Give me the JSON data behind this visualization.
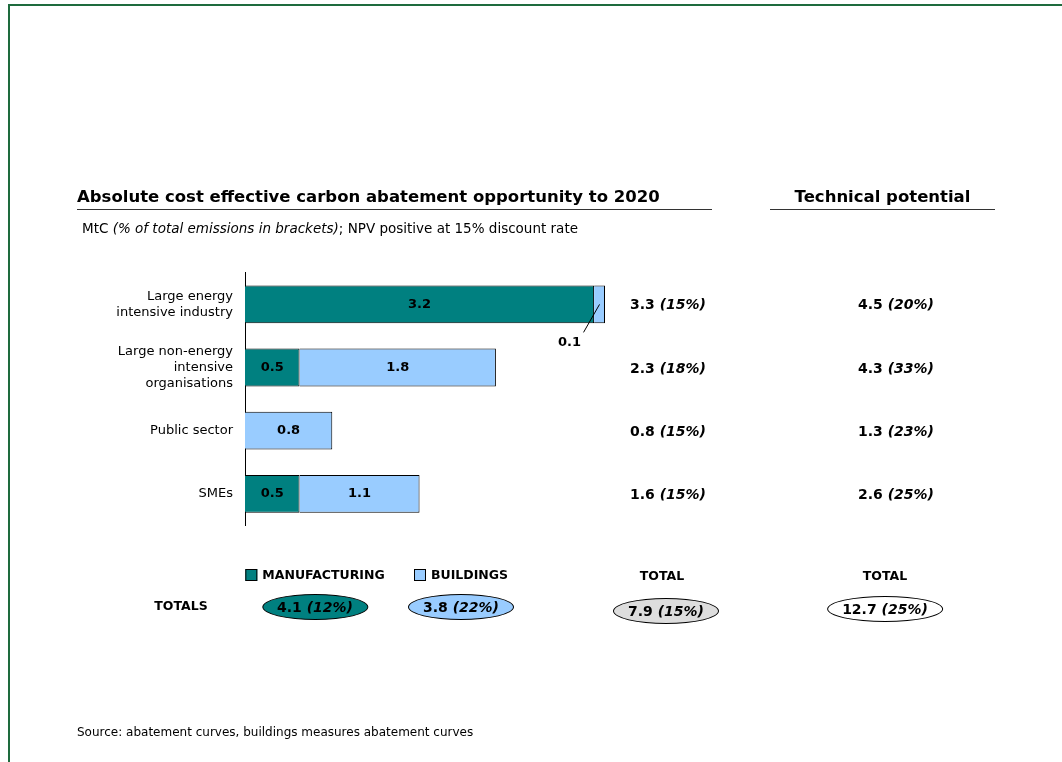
{
  "chart_data": {
    "type": "bar",
    "orientation": "horizontal",
    "stacked": true,
    "title": "Absolute cost effective carbon abatement opportunity to 2020",
    "subtitle": "MtC (% of total emissions in brackets); NPV positive at 15% discount rate",
    "categories": [
      "Large energy intensive industry",
      "Large non-energy intensive organisations",
      "Public sector",
      "SMEs"
    ],
    "series": [
      {
        "name": "MANUFACTURING",
        "color": "#008080",
        "values": [
          3.2,
          0.5,
          null,
          0.5
        ]
      },
      {
        "name": "BUILDINGS",
        "color": "#99ccff",
        "values": [
          0.1,
          1.8,
          0.8,
          1.1
        ]
      }
    ],
    "xlim": [
      0,
      3.3
    ],
    "data_labels": true,
    "legend": "bottom",
    "annotations": [
      "Technical potential",
      "4.5 (20%)",
      "4.3 (33%)",
      "1.3 (23%)",
      "2.6 (25%)",
      "TOTALS",
      "4.1 (12%)",
      "3.8 (22%)",
      "TOTAL",
      "7.9 (15%)",
      "TOTAL",
      "12.7 (25%)",
      "Source: abatement curves, buildings measures abatement curves",
      "3.3 (15%)",
      "2.3 (18%)",
      "0.8 (15%)",
      "1.6 (15%)"
    ]
  }
}
